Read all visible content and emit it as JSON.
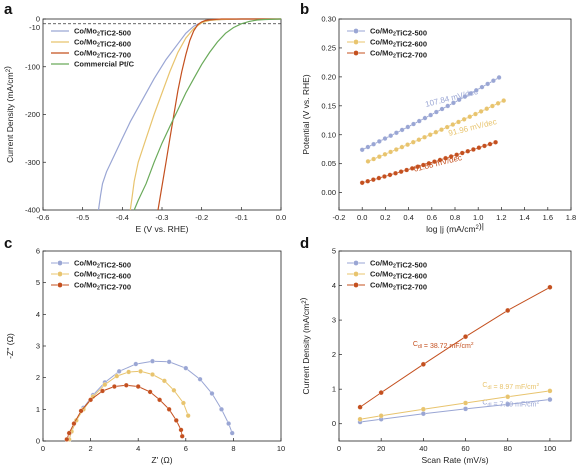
{
  "chart_data": [
    {
      "panel": "a",
      "type": "line",
      "xlabel": "E (V vs. RHE)",
      "ylabel": "Current Density (mA/cm²)",
      "xlim": [
        -0.6,
        0.0
      ],
      "ylim": [
        -400,
        0
      ],
      "xticks": [
        "-0.6",
        "-0.5",
        "-0.4",
        "-0.3",
        "-0.2",
        "-0.1",
        "0.0"
      ],
      "yticks": [
        "0",
        "-100",
        "-200",
        "-300",
        "-400"
      ],
      "extra_ytick": "-10",
      "reference_line_y": -10,
      "legend_position": "top-left",
      "series": [
        {
          "name": "Co/Mo2TiC2-500",
          "color": "#9aa6d4",
          "points": [
            [
              -0.46,
              -400
            ],
            [
              -0.455,
              -370
            ],
            [
              -0.45,
              -345
            ],
            [
              -0.44,
              -320
            ],
            [
              -0.42,
              -285
            ],
            [
              -0.4,
              -250
            ],
            [
              -0.38,
              -215
            ],
            [
              -0.35,
              -170
            ],
            [
              -0.32,
              -125
            ],
            [
              -0.29,
              -85
            ],
            [
              -0.26,
              -52
            ],
            [
              -0.24,
              -30
            ],
            [
              -0.22,
              -15
            ],
            [
              -0.2,
              -7
            ],
            [
              -0.18,
              -3
            ],
            [
              -0.15,
              -1
            ],
            [
              -0.1,
              0
            ],
            [
              0,
              0
            ]
          ]
        },
        {
          "name": "Co/Mo2TiC2-600",
          "color": "#e8c46e",
          "points": [
            [
              -0.38,
              -400
            ],
            [
              -0.375,
              -370
            ],
            [
              -0.37,
              -340
            ],
            [
              -0.36,
              -300
            ],
            [
              -0.34,
              -250
            ],
            [
              -0.32,
              -200
            ],
            [
              -0.3,
              -155
            ],
            [
              -0.28,
              -110
            ],
            [
              -0.26,
              -70
            ],
            [
              -0.24,
              -40
            ],
            [
              -0.22,
              -20
            ],
            [
              -0.2,
              -8
            ],
            [
              -0.18,
              -3
            ],
            [
              -0.15,
              -1
            ],
            [
              -0.1,
              0
            ],
            [
              0,
              0
            ]
          ]
        },
        {
          "name": "Co/Mo2TiC2-700",
          "color": "#c4501f",
          "points": [
            [
              -0.31,
              -400
            ],
            [
              -0.3,
              -350
            ],
            [
              -0.29,
              -300
            ],
            [
              -0.28,
              -250
            ],
            [
              -0.27,
              -200
            ],
            [
              -0.26,
              -150
            ],
            [
              -0.25,
              -110
            ],
            [
              -0.24,
              -75
            ],
            [
              -0.23,
              -45
            ],
            [
              -0.22,
              -25
            ],
            [
              -0.21,
              -12
            ],
            [
              -0.2,
              -6
            ],
            [
              -0.19,
              -3
            ],
            [
              -0.17,
              -1
            ],
            [
              -0.15,
              0
            ],
            [
              0,
              0
            ]
          ]
        },
        {
          "name": "Commercial Pt/C",
          "color": "#6aaa5a",
          "points": [
            [
              -0.37,
              -400
            ],
            [
              -0.36,
              -380
            ],
            [
              -0.34,
              -345
            ],
            [
              -0.32,
              -300
            ],
            [
              -0.3,
              -260
            ],
            [
              -0.28,
              -225
            ],
            [
              -0.26,
              -190
            ],
            [
              -0.24,
              -155
            ],
            [
              -0.22,
              -125
            ],
            [
              -0.2,
              -95
            ],
            [
              -0.18,
              -70
            ],
            [
              -0.16,
              -48
            ],
            [
              -0.14,
              -30
            ],
            [
              -0.12,
              -18
            ],
            [
              -0.1,
              -10
            ],
            [
              -0.08,
              -5
            ],
            [
              -0.06,
              -2
            ],
            [
              -0.04,
              -1
            ],
            [
              0,
              0
            ]
          ]
        }
      ]
    },
    {
      "panel": "b",
      "type": "scatter",
      "xlabel": "log |j (mA/cm²)|",
      "ylabel": "Potential (V vs. RHE)",
      "xlim": [
        -0.2,
        1.8
      ],
      "ylim": [
        -0.03,
        0.3
      ],
      "xticks": [
        "-0.2",
        "0.0",
        "0.2",
        "0.4",
        "0.6",
        "0.8",
        "1.0",
        "1.2",
        "1.4",
        "1.6",
        "1.8"
      ],
      "yticks": [
        "0.00",
        "0.05",
        "0.10",
        "0.15",
        "0.20",
        "0.25",
        "0.30"
      ],
      "legend_position": "top-left",
      "series": [
        {
          "name": "Co/Mo2TiC2-500",
          "color": "#9aa6d4",
          "x_start": 0.0,
          "x_end": 1.18,
          "y_start": 0.074,
          "y_end": 0.199,
          "slope_label": "107.84 mV/dec",
          "label_at": [
            0.55,
            0.148
          ]
        },
        {
          "name": "Co/Mo2TiC2-600",
          "color": "#e8c46e",
          "x_start": 0.05,
          "x_end": 1.22,
          "y_start": 0.054,
          "y_end": 0.159,
          "slope_label": "91.96 mV/dec",
          "label_at": [
            0.75,
            0.098
          ]
        },
        {
          "name": "Co/Mo2TiC2-700",
          "color": "#c4501f",
          "x_start": 0.0,
          "x_end": 1.15,
          "y_start": 0.017,
          "y_end": 0.087,
          "slope_label": "61.88 mV/dec",
          "label_at": [
            0.45,
            0.036
          ]
        }
      ]
    },
    {
      "panel": "c",
      "type": "scatter",
      "xlabel": "Z' (Ω)",
      "ylabel": "-Z'' (Ω)",
      "xlim": [
        0,
        10
      ],
      "ylim": [
        0,
        6
      ],
      "xticks": [
        "0",
        "2",
        "4",
        "6",
        "8",
        "10"
      ],
      "yticks": [
        "0",
        "1",
        "2",
        "3",
        "4",
        "5",
        "6"
      ],
      "legend_position": "top-left",
      "series": [
        {
          "name": "Co/Mo2TiC2-500",
          "color": "#9aa6d4",
          "points": [
            [
              1.1,
              0.05
            ],
            [
              1.2,
              0.3
            ],
            [
              1.4,
              0.65
            ],
            [
              1.7,
              1.05
            ],
            [
              2.1,
              1.45
            ],
            [
              2.6,
              1.85
            ],
            [
              3.2,
              2.2
            ],
            [
              3.9,
              2.43
            ],
            [
              4.6,
              2.52
            ],
            [
              5.3,
              2.5
            ],
            [
              6.0,
              2.3
            ],
            [
              6.6,
              1.95
            ],
            [
              7.1,
              1.5
            ],
            [
              7.5,
              1.0
            ],
            [
              7.8,
              0.55
            ],
            [
              7.95,
              0.25
            ]
          ]
        },
        {
          "name": "Co/Mo2TiC2-600",
          "color": "#e8c46e",
          "points": [
            [
              1.1,
              0.05
            ],
            [
              1.2,
              0.3
            ],
            [
              1.4,
              0.65
            ],
            [
              1.7,
              1.0
            ],
            [
              2.1,
              1.4
            ],
            [
              2.6,
              1.78
            ],
            [
              3.1,
              2.05
            ],
            [
              3.6,
              2.18
            ],
            [
              4.1,
              2.2
            ],
            [
              4.6,
              2.1
            ],
            [
              5.1,
              1.9
            ],
            [
              5.5,
              1.6
            ],
            [
              5.9,
              1.2
            ],
            [
              6.1,
              0.8
            ]
          ]
        },
        {
          "name": "Co/Mo2TiC2-700",
          "color": "#c4501f",
          "points": [
            [
              1.0,
              0.05
            ],
            [
              1.1,
              0.25
            ],
            [
              1.3,
              0.55
            ],
            [
              1.6,
              0.95
            ],
            [
              2.0,
              1.3
            ],
            [
              2.5,
              1.58
            ],
            [
              3.0,
              1.72
            ],
            [
              3.5,
              1.76
            ],
            [
              4.0,
              1.72
            ],
            [
              4.5,
              1.55
            ],
            [
              4.9,
              1.3
            ],
            [
              5.3,
              1.0
            ],
            [
              5.6,
              0.65
            ],
            [
              5.8,
              0.35
            ],
            [
              5.85,
              0.15
            ]
          ]
        }
      ]
    },
    {
      "panel": "d",
      "type": "line",
      "xlabel": "Scan Rate (mV/s)",
      "ylabel": "Current Density (mA/cm²)",
      "xlim": [
        0,
        110
      ],
      "ylim": [
        -0.5,
        5
      ],
      "xticks": [
        "0",
        "20",
        "40",
        "60",
        "80",
        "100"
      ],
      "yticks": [
        "0",
        "1",
        "2",
        "3",
        "4",
        "5"
      ],
      "legend_position": "top-left",
      "x": [
        10,
        20,
        40,
        60,
        80,
        100
      ],
      "series": [
        {
          "name": "Co/Mo2TiC2-500",
          "color": "#9aa6d4",
          "values": [
            0.05,
            0.13,
            0.29,
            0.43,
            0.56,
            0.7
          ],
          "cdl_label": "Cdl = 7.39 mF/cm²",
          "label_at": [
            68,
            0.55
          ]
        },
        {
          "name": "Co/Mo2TiC2-600",
          "color": "#e8c46e",
          "values": [
            0.13,
            0.23,
            0.42,
            0.6,
            0.78,
            0.95
          ],
          "cdl_label": "Cdl = 8.97 mF/cm²",
          "label_at": [
            68,
            1.07
          ]
        },
        {
          "name": "Co/Mo2TiC2-700",
          "color": "#c4501f",
          "values": [
            0.48,
            0.9,
            1.72,
            2.52,
            3.28,
            3.95
          ],
          "cdl_label": "Cdl = 38.72 mF/cm²",
          "label_at": [
            35,
            2.25
          ]
        }
      ]
    }
  ]
}
